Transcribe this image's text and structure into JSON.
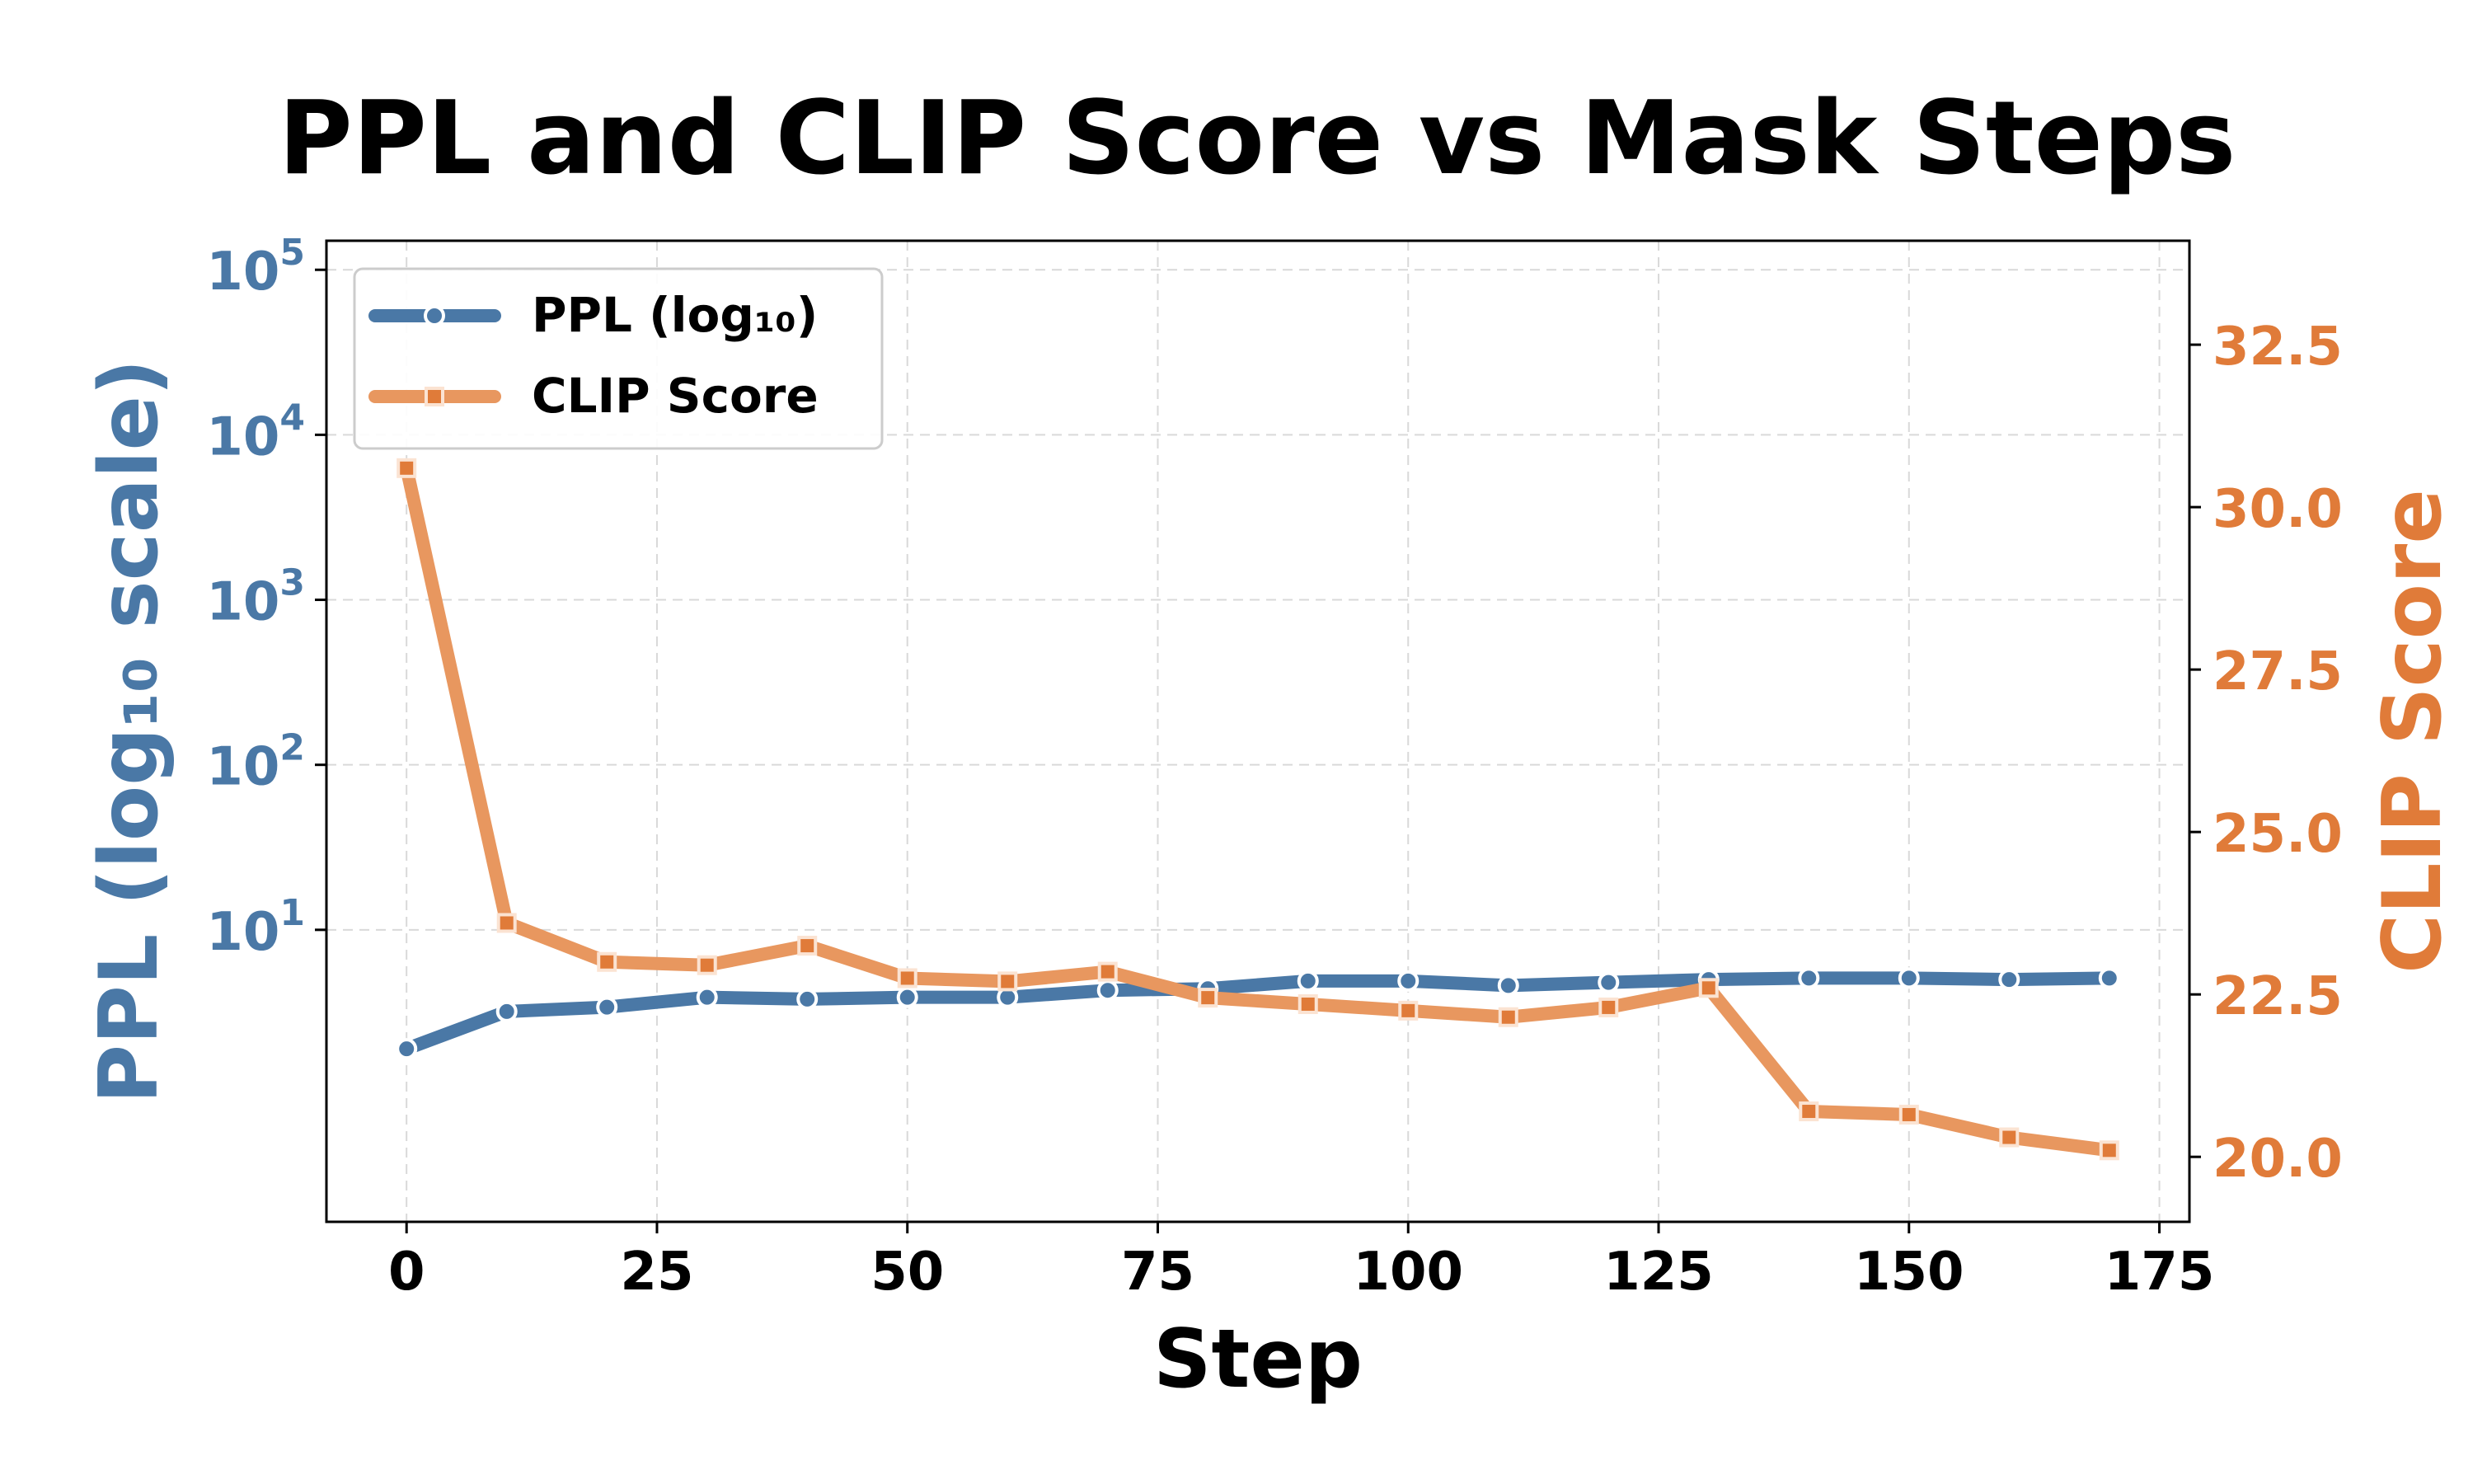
{
  "chart_data": {
    "type": "line",
    "title": "PPL and CLIP Score vs Mask Steps",
    "xlabel": "Step",
    "ylabel_left": "PPL (log₁₀ scale)",
    "ylabel_right": "CLIP Score",
    "x": [
      0,
      10,
      20,
      30,
      40,
      50,
      60,
      70,
      80,
      90,
      100,
      110,
      120,
      130,
      140,
      150,
      160,
      170
    ],
    "xlim": [
      -8,
      178
    ],
    "xticks": [
      0,
      25,
      50,
      75,
      100,
      125,
      150,
      175
    ],
    "xtick_labels": [
      "0",
      "25",
      "50",
      "75",
      "100",
      "125",
      "150",
      "175"
    ],
    "y_left": {
      "scale": "log",
      "lim": [
        0.17,
        150000
      ],
      "ticks": [
        10,
        100,
        1000,
        10000,
        100000
      ],
      "tick_base": "10",
      "tick_exponents": [
        "1",
        "2",
        "3",
        "4",
        "5"
      ]
    },
    "y_right": {
      "scale": "linear",
      "lim": [
        19.0,
        34.1
      ],
      "ticks": [
        20.0,
        22.5,
        25.0,
        27.5,
        30.0,
        32.5
      ],
      "tick_labels": [
        "20.0",
        "22.5",
        "25.0",
        "27.5",
        "30.0",
        "32.5"
      ]
    },
    "series": [
      {
        "name": "PPL (log₁₀)",
        "axis": "left",
        "color": "#4a78a6",
        "marker": "circle",
        "values": [
          1.9,
          3.2,
          3.4,
          3.9,
          3.8,
          3.9,
          3.9,
          4.3,
          4.4,
          4.9,
          4.9,
          4.6,
          4.8,
          5.0,
          5.1,
          5.1,
          5.0,
          5.1
        ]
      },
      {
        "name": "CLIP Score",
        "axis": "right",
        "color": "#e8975f",
        "marker": "square",
        "values": [
          30.6,
          23.6,
          23.0,
          22.95,
          23.25,
          22.75,
          22.7,
          22.85,
          22.45,
          22.35,
          22.25,
          22.15,
          22.3,
          22.6,
          20.7,
          20.65,
          20.3,
          20.1
        ]
      }
    ],
    "grid": true,
    "legend_position": "top-left"
  }
}
